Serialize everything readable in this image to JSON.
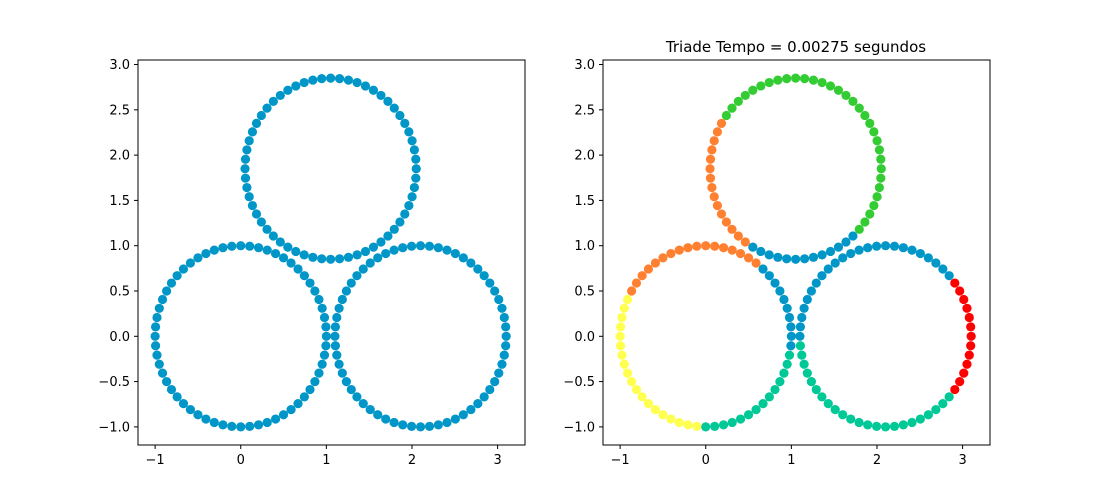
{
  "chart_data": [
    {
      "type": "scatter",
      "title": "",
      "xlabel": "",
      "ylabel": "",
      "xlim": [
        -1.2,
        3.32
      ],
      "ylim": [
        -1.2,
        3.05
      ],
      "xticks": [
        -1,
        0,
        1,
        2,
        3
      ],
      "yticks": [
        -1.0,
        -0.5,
        0.0,
        0.5,
        1.0,
        1.5,
        2.0,
        2.5,
        3.0
      ],
      "xtick_labels": [
        "−1",
        "0",
        "1",
        "2",
        "3"
      ],
      "ytick_labels": [
        "−1.0",
        "−0.5",
        "0.0",
        "0.5",
        "1.0",
        "1.5",
        "2.0",
        "2.5",
        "3.0"
      ],
      "grid": false,
      "circles": [
        {
          "center": [
            0,
            0
          ],
          "radius": 1,
          "points": 60
        },
        {
          "center": [
            2.1,
            0
          ],
          "radius": 1,
          "points": 60
        },
        {
          "center": [
            1.05,
            1.85
          ],
          "radius": 1,
          "points": 60
        }
      ],
      "arcs": [
        {
          "circle": 0,
          "from_deg": 0,
          "to_deg": 360,
          "color": "#0096c8"
        },
        {
          "circle": 1,
          "from_deg": 0,
          "to_deg": 360,
          "color": "#0096c8"
        },
        {
          "circle": 2,
          "from_deg": 0,
          "to_deg": 360,
          "color": "#0096c8"
        }
      ]
    },
    {
      "type": "scatter",
      "title": "Triade Tempo = 0.00275 segundos",
      "xlabel": "",
      "ylabel": "",
      "xlim": [
        -1.2,
        3.32
      ],
      "ylim": [
        -1.2,
        3.05
      ],
      "xticks": [
        -1,
        0,
        1,
        2,
        3
      ],
      "yticks": [
        -1.0,
        -0.5,
        0.0,
        0.5,
        1.0,
        1.5,
        2.0,
        2.5,
        3.0
      ],
      "xtick_labels": [
        "−1",
        "0",
        "1",
        "2",
        "3"
      ],
      "ytick_labels": [
        "−1.0",
        "−0.5",
        "0.0",
        "0.5",
        "1.0",
        "1.5",
        "2.0",
        "2.5",
        "3.0"
      ],
      "grid": false,
      "circles": [
        {
          "center": [
            0,
            0
          ],
          "radius": 1,
          "points": 60
        },
        {
          "center": [
            2.1,
            0
          ],
          "radius": 1,
          "points": 60
        },
        {
          "center": [
            1.05,
            1.85
          ],
          "radius": 1,
          "points": 60
        }
      ],
      "arcs": [
        {
          "circle": 0,
          "from_deg": 0,
          "to_deg": 50,
          "color": "#0096c8"
        },
        {
          "circle": 0,
          "from_deg": 50,
          "to_deg": 155,
          "color": "#ff8030"
        },
        {
          "circle": 0,
          "from_deg": 155,
          "to_deg": 268,
          "color": "#ffff50"
        },
        {
          "circle": 0,
          "from_deg": 268,
          "to_deg": 354,
          "color": "#00c896"
        },
        {
          "circle": 0,
          "from_deg": 354,
          "to_deg": 360,
          "color": "#0096c8"
        },
        {
          "circle": 1,
          "from_deg": -40,
          "to_deg": 38,
          "color": "#ff0000"
        },
        {
          "circle": 1,
          "from_deg": 38,
          "to_deg": 186,
          "color": "#0096c8"
        },
        {
          "circle": 1,
          "from_deg": 186,
          "to_deg": 320,
          "color": "#00c896"
        },
        {
          "circle": 2,
          "from_deg": -46,
          "to_deg": 148,
          "color": "#33cc33"
        },
        {
          "circle": 2,
          "from_deg": 148,
          "to_deg": 238,
          "color": "#ff8030"
        },
        {
          "circle": 2,
          "from_deg": 238,
          "to_deg": 314,
          "color": "#0096c8"
        }
      ]
    }
  ]
}
